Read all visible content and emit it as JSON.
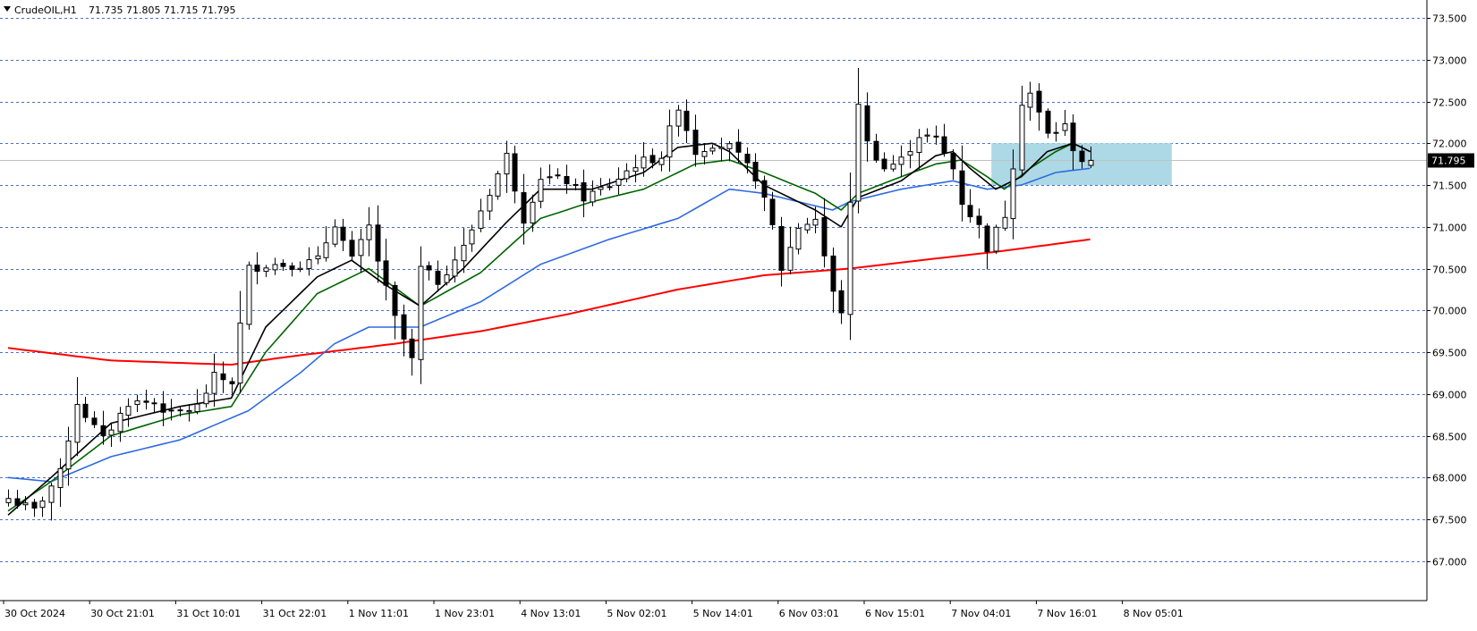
{
  "header": {
    "symbol_label": "CrudeOIL,H1",
    "ohlc_label": "71.735 71.805 71.715 71.795"
  },
  "current_price_label": "71.795",
  "colors": {
    "grid": "#4a6fd0",
    "ma_red": "#ff0000",
    "ma_blue": "#2f6be0",
    "ma_green": "#006400",
    "ma_black": "#000000",
    "zone": "#add8e6",
    "price_line": "#c0c0c0"
  },
  "chart_data": {
    "type": "candlestick",
    "ylim": [
      66.9,
      73.6
    ],
    "y_ticks": [
      "67.000",
      "67.500",
      "68.000",
      "68.500",
      "69.000",
      "69.500",
      "70.000",
      "70.500",
      "71.000",
      "71.500",
      "72.000",
      "72.500",
      "73.000",
      "73.500"
    ],
    "x_tick_labels": [
      "30 Oct 2024",
      "30 Oct 21:01",
      "31 Oct 10:01",
      "31 Oct 22:01",
      "1 Nov 11:01",
      "1 Nov 23:01",
      "4 Nov 13:01",
      "5 Nov 02:01",
      "5 Nov 14:01",
      "6 Nov 03:01",
      "6 Nov 15:01",
      "7 Nov 04:01",
      "7 Nov 16:01",
      "8 Nov 05:01"
    ],
    "key_close_points": [
      [
        0,
        67.75
      ],
      [
        3,
        67.6
      ],
      [
        6,
        68.05
      ],
      [
        8,
        68.9
      ],
      [
        11,
        68.45
      ],
      [
        14,
        68.9
      ],
      [
        17,
        68.9
      ],
      [
        19,
        68.75
      ],
      [
        22,
        68.85
      ],
      [
        24,
        69.2
      ],
      [
        26,
        69.15
      ],
      [
        28,
        70.5
      ],
      [
        30,
        70.55
      ],
      [
        34,
        70.55
      ],
      [
        36,
        70.6
      ],
      [
        38,
        71.05
      ],
      [
        40,
        70.6
      ],
      [
        42,
        71.0
      ],
      [
        43,
        70.6
      ],
      [
        45,
        69.9
      ],
      [
        47,
        69.4
      ],
      [
        48,
        70.5
      ],
      [
        50,
        70.35
      ],
      [
        53,
        70.75
      ],
      [
        55,
        71.2
      ],
      [
        58,
        71.85
      ],
      [
        60,
        71.1
      ],
      [
        62,
        71.6
      ],
      [
        65,
        71.55
      ],
      [
        67,
        71.35
      ],
      [
        70,
        71.5
      ],
      [
        73,
        71.75
      ],
      [
        76,
        71.85
      ],
      [
        78,
        72.45
      ],
      [
        80,
        71.9
      ],
      [
        82,
        72.0
      ],
      [
        84,
        71.95
      ],
      [
        87,
        71.6
      ],
      [
        89,
        71.0
      ],
      [
        90,
        70.5
      ],
      [
        92,
        71.0
      ],
      [
        94,
        71.1
      ],
      [
        96,
        70.2
      ],
      [
        97,
        70.0
      ],
      [
        98,
        71.25
      ],
      [
        99,
        72.5
      ],
      [
        100,
        72.0
      ],
      [
        102,
        71.7
      ],
      [
        104,
        71.8
      ],
      [
        106,
        72.1
      ],
      [
        108,
        72.05
      ],
      [
        110,
        71.7
      ],
      [
        111,
        71.3
      ],
      [
        113,
        71.0
      ],
      [
        114,
        70.75
      ],
      [
        116,
        71.15
      ],
      [
        117,
        71.75
      ],
      [
        118,
        72.5
      ],
      [
        119,
        72.6
      ],
      [
        121,
        72.1
      ],
      [
        123,
        72.2
      ],
      [
        124,
        71.95
      ],
      [
        125,
        71.8
      ],
      [
        126,
        71.795
      ]
    ],
    "moving_averages": [
      {
        "period": 200,
        "color": "red",
        "points": [
          [
            0,
            69.55
          ],
          [
            12,
            69.4
          ],
          [
            26,
            69.35
          ],
          [
            33,
            69.45
          ],
          [
            45,
            69.6
          ],
          [
            55,
            69.75
          ],
          [
            65,
            69.95
          ],
          [
            78,
            70.25
          ],
          [
            88,
            70.42
          ],
          [
            98,
            70.5
          ],
          [
            108,
            70.62
          ],
          [
            115,
            70.7
          ],
          [
            126,
            70.85
          ]
        ]
      },
      {
        "period": 50,
        "color": "blue",
        "points": [
          [
            0,
            68.0
          ],
          [
            5,
            67.95
          ],
          [
            12,
            68.25
          ],
          [
            20,
            68.45
          ],
          [
            28,
            68.8
          ],
          [
            34,
            69.25
          ],
          [
            38,
            69.6
          ],
          [
            42,
            69.8
          ],
          [
            48,
            69.8
          ],
          [
            55,
            70.1
          ],
          [
            62,
            70.55
          ],
          [
            70,
            70.85
          ],
          [
            78,
            71.1
          ],
          [
            84,
            71.45
          ],
          [
            88,
            71.4
          ],
          [
            96,
            71.2
          ],
          [
            98,
            71.3
          ],
          [
            104,
            71.45
          ],
          [
            110,
            71.55
          ],
          [
            114,
            71.45
          ],
          [
            118,
            71.5
          ],
          [
            122,
            71.65
          ],
          [
            126,
            71.7
          ]
        ]
      },
      {
        "period": 20,
        "color": "green",
        "points": [
          [
            0,
            67.6
          ],
          [
            5,
            67.95
          ],
          [
            12,
            68.5
          ],
          [
            20,
            68.75
          ],
          [
            26,
            68.85
          ],
          [
            30,
            69.5
          ],
          [
            36,
            70.2
          ],
          [
            42,
            70.5
          ],
          [
            48,
            70.05
          ],
          [
            55,
            70.45
          ],
          [
            62,
            71.1
          ],
          [
            68,
            71.3
          ],
          [
            74,
            71.45
          ],
          [
            80,
            71.75
          ],
          [
            84,
            71.8
          ],
          [
            88,
            71.65
          ],
          [
            94,
            71.4
          ],
          [
            97,
            71.2
          ],
          [
            99,
            71.4
          ],
          [
            104,
            71.6
          ],
          [
            108,
            71.75
          ],
          [
            111,
            71.8
          ],
          [
            114,
            71.6
          ],
          [
            116,
            71.45
          ],
          [
            119,
            71.7
          ],
          [
            122,
            71.9
          ],
          [
            124,
            72.0
          ],
          [
            126,
            71.9
          ]
        ]
      },
      {
        "period": 10,
        "color": "black",
        "points": [
          [
            0,
            67.55
          ],
          [
            5,
            68.0
          ],
          [
            12,
            68.65
          ],
          [
            20,
            68.85
          ],
          [
            26,
            68.95
          ],
          [
            30,
            69.8
          ],
          [
            36,
            70.4
          ],
          [
            40,
            70.6
          ],
          [
            44,
            70.3
          ],
          [
            48,
            70.05
          ],
          [
            53,
            70.5
          ],
          [
            58,
            71.05
          ],
          [
            62,
            71.45
          ],
          [
            68,
            71.45
          ],
          [
            74,
            71.65
          ],
          [
            78,
            71.95
          ],
          [
            82,
            72.0
          ],
          [
            84,
            71.9
          ],
          [
            88,
            71.5
          ],
          [
            94,
            71.2
          ],
          [
            97,
            71.0
          ],
          [
            99,
            71.35
          ],
          [
            104,
            71.55
          ],
          [
            108,
            71.85
          ],
          [
            110,
            71.9
          ],
          [
            112,
            71.7
          ],
          [
            115,
            71.45
          ],
          [
            118,
            71.6
          ],
          [
            121,
            71.9
          ],
          [
            124,
            72.0
          ],
          [
            126,
            71.9
          ]
        ]
      }
    ],
    "zone": {
      "x_start_bar": 114.5,
      "x_end_bar": 135.5,
      "y_low": 71.5,
      "y_high": 72.0
    },
    "current_price": 71.795
  }
}
